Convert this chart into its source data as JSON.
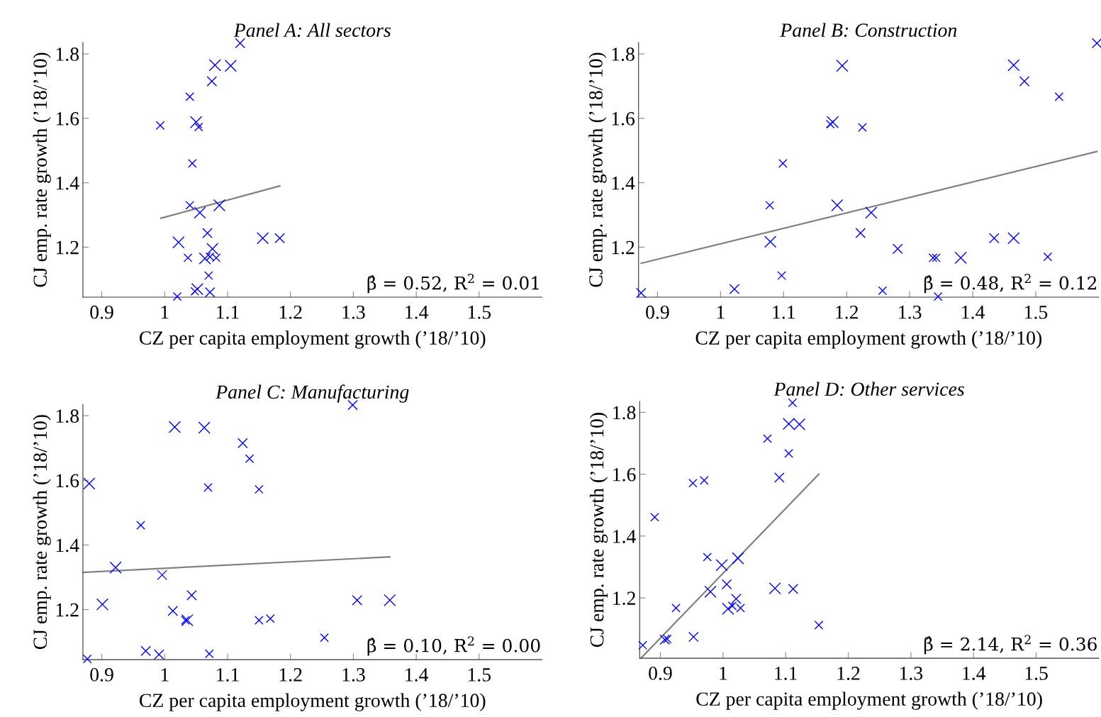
{
  "chart_data": [
    {
      "type": "bubble",
      "title": "Panel A: All sectors",
      "xlabel": "CZ per capita employment growth (’18/’10)",
      "ylabel": "CJ emp. rate growth (’18/’10)",
      "xlim": [
        0.87,
        1.6
      ],
      "ylim": [
        1.045,
        1.835
      ],
      "xticks": [
        0.9,
        1,
        1.1,
        1.2,
        1.3,
        1.4,
        1.5
      ],
      "yticks": [
        1.2,
        1.4,
        1.6,
        1.8
      ],
      "grid": false,
      "annotations": [
        "β̂ = 0.52, R$^{2}$ = 0.01"
      ],
      "series": [
        {
          "type": "bubble",
          "marker": "cross",
          "color": "#0000ff",
          "x": [
            1.12,
            1.08,
            1.105,
            1.075,
            1.04,
            0.993,
            1.05,
            1.054,
            1.044,
            1.04,
            1.087,
            1.056,
            1.068,
            1.022,
            1.156,
            1.183,
            1.076,
            1.037,
            1.064,
            1.072,
            1.082,
            1.07,
            1.052,
            1.048,
            1.072,
            1.02
          ],
          "values": [
            1.833,
            1.765,
            1.763,
            1.715,
            1.667,
            1.578,
            1.588,
            1.573,
            1.46,
            1.33,
            1.33,
            1.307,
            1.244,
            1.215,
            1.228,
            1.228,
            1.195,
            1.167,
            1.165,
            1.17,
            1.167,
            1.112,
            1.07,
            1.063,
            1.06,
            1.047
          ],
          "sizes": [
            0.7,
            1,
            1,
            0.7,
            0.5,
            0.5,
            1,
            0.5,
            0.5,
            0.5,
            1,
            1,
            0.7,
            1,
            1,
            0.7,
            1,
            0.5,
            1,
            0.5,
            0.5,
            0.5,
            1,
            0.5,
            0.7,
            0.5
          ]
        },
        {
          "type": "line",
          "color": "#808080",
          "x": [
            0.994,
            1.183
          ],
          "values": [
            1.29,
            1.39
          ]
        }
      ]
    },
    {
      "type": "bubble",
      "title": "Panel B: Construction",
      "xlabel": "CZ per capita employment growth (’18/’10)",
      "ylabel": "CJ emp. rate growth (’18/’10)",
      "xlim": [
        0.87,
        1.6
      ],
      "ylim": [
        1.045,
        1.835
      ],
      "xticks": [
        0.9,
        1,
        1.1,
        1.2,
        1.3,
        1.4,
        1.5
      ],
      "yticks": [
        1.2,
        1.4,
        1.6,
        1.8
      ],
      "grid": false,
      "annotations": [
        "β̂ = 0.48, R$^{2}$ = 0.12"
      ],
      "series": [
        {
          "type": "bubble",
          "marker": "cross",
          "color": "#0000ff",
          "x": [
            1.597,
            1.193,
            1.465,
            1.482,
            1.537,
            1.174,
            1.178,
            1.225,
            1.099,
            1.078,
            1.185,
            1.239,
            1.222,
            1.079,
            1.434,
            1.465,
            1.281,
            1.337,
            1.342,
            1.381,
            1.519,
            1.022,
            1.097,
            1.257,
            0.874,
            1.345
          ],
          "values": [
            1.833,
            1.763,
            1.765,
            1.715,
            1.667,
            1.582,
            1.588,
            1.572,
            1.46,
            1.33,
            1.33,
            1.307,
            1.244,
            1.217,
            1.228,
            1.228,
            1.195,
            1.167,
            1.167,
            1.167,
            1.17,
            1.07,
            1.112,
            1.065,
            1.058,
            1.047
          ],
          "sizes": [
            0.7,
            1,
            1,
            0.7,
            0.5,
            0.5,
            1,
            0.5,
            0.5,
            0.5,
            1,
            1,
            0.7,
            1,
            0.7,
            1,
            0.7,
            0.5,
            0.5,
            1,
            0.5,
            0.7,
            0.5,
            0.5,
            0.7,
            0.5
          ]
        },
        {
          "type": "line",
          "color": "#808080",
          "x": [
            0.874,
            1.597
          ],
          "values": [
            1.15,
            1.497
          ]
        }
      ]
    },
    {
      "type": "bubble",
      "title": "Panel C: Manufacturing",
      "xlabel": "CZ per capita employment growth (’18/’10)",
      "ylabel": "CJ emp. rate growth (’18/’10)",
      "xlim": [
        0.87,
        1.6
      ],
      "ylim": [
        1.045,
        1.835
      ],
      "xticks": [
        0.9,
        1,
        1.1,
        1.2,
        1.3,
        1.4,
        1.5
      ],
      "yticks": [
        1.2,
        1.4,
        1.6,
        1.8
      ],
      "grid": false,
      "annotations": [
        "β̂ = 0.10, R$^{2}$ = 0.00"
      ],
      "series": [
        {
          "type": "bubble",
          "marker": "cross",
          "color": "#0000ff",
          "x": [
            1.299,
            1.016,
            1.063,
            1.124,
            1.135,
            0.88,
            1.069,
            1.15,
            0.962,
            0.922,
            0.996,
            1.043,
            0.901,
            1.306,
            1.358,
            1.013,
            1.033,
            1.036,
            1.15,
            1.168,
            1.254,
            0.97,
            0.991,
            1.071,
            0.877
          ],
          "values": [
            1.833,
            1.765,
            1.763,
            1.715,
            1.667,
            1.59,
            1.578,
            1.572,
            1.461,
            1.33,
            1.307,
            1.244,
            1.216,
            1.229,
            1.229,
            1.196,
            1.167,
            1.167,
            1.167,
            1.172,
            1.113,
            1.072,
            1.061,
            1.063,
            1.047
          ],
          "sizes": [
            0.7,
            1,
            1,
            0.7,
            0.5,
            1,
            0.5,
            0.5,
            0.5,
            1,
            0.7,
            0.7,
            1,
            0.7,
            1,
            0.7,
            0.5,
            1,
            0.5,
            0.5,
            0.5,
            0.7,
            0.7,
            0.5,
            0.5
          ]
        },
        {
          "type": "line",
          "color": "#808080",
          "x": [
            0.87,
            1.358
          ],
          "values": [
            1.315,
            1.363
          ]
        }
      ]
    },
    {
      "type": "bubble",
      "title": "Panel D: Other services",
      "xlabel": "CZ per capita employment growth (’18/’10)",
      "ylabel": "CJ emp. rate growth (’18/’10)",
      "xlim": [
        0.867,
        1.6
      ],
      "ylim": [
        1.005,
        1.835
      ],
      "xticks": [
        0.9,
        1,
        1.1,
        1.2,
        1.3,
        1.4,
        1.5
      ],
      "yticks": [
        1.2,
        1.4,
        1.6,
        1.8
      ],
      "grid": false,
      "annotations": [
        "β̂ = 2.14, R$^{2}$ = 0.36"
      ],
      "series": [
        {
          "type": "bubble",
          "marker": "cross",
          "color": "#0000ff",
          "x": [
            1.111,
            1.105,
            1.122,
            1.071,
            1.105,
            0.952,
            0.97,
            1.09,
            0.891,
            0.975,
            1.024,
            0.998,
            1.006,
            0.98,
            1.083,
            1.112,
            1.021,
            1.008,
            1.015,
            1.028,
            0.925,
            1.153,
            0.953,
            0.907,
            0.911,
            0.872
          ],
          "values": [
            1.831,
            1.763,
            1.761,
            1.715,
            1.667,
            1.571,
            1.58,
            1.589,
            1.461,
            1.332,
            1.328,
            1.306,
            1.244,
            1.22,
            1.231,
            1.229,
            1.197,
            1.165,
            1.174,
            1.167,
            1.167,
            1.112,
            1.074,
            1.065,
            1.067,
            1.047
          ],
          "sizes": [
            0.5,
            1,
            1,
            0.5,
            0.5,
            0.5,
            0.5,
            0.7,
            0.5,
            0.5,
            1,
            1,
            0.7,
            1,
            1,
            0.7,
            0.7,
            1,
            0.5,
            0.5,
            0.5,
            0.5,
            0.7,
            0.7,
            0.5,
            0.5
          ]
        },
        {
          "type": "line",
          "color": "#808080",
          "x": [
            0.869,
            1.153
          ],
          "values": [
            1.005,
            1.6
          ]
        }
      ]
    }
  ]
}
